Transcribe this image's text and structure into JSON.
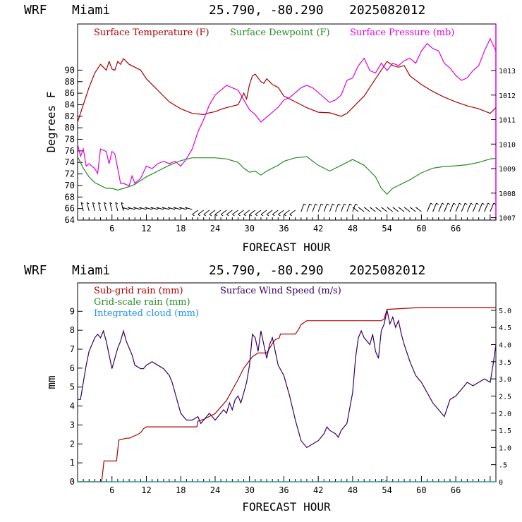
{
  "chart_data": [
    {
      "type": "line",
      "header": {
        "model": "WRF",
        "location": "Miami",
        "coords": "25.790, -80.290",
        "date": "2025082012"
      },
      "xlabel": "FORECAST HOUR",
      "ylabel": "Degrees F",
      "xlim": [
        0,
        73
      ],
      "xticks": [
        "6",
        "12",
        "18",
        "24",
        "30",
        "36",
        "42",
        "48",
        "54",
        "60",
        "66"
      ],
      "ylim": [
        64,
        98
      ],
      "yticks": [
        "64",
        "66",
        "68",
        "70",
        "72",
        "74",
        "76",
        "78",
        "80",
        "82",
        "84",
        "86",
        "88",
        "90"
      ],
      "y2lim": [
        1006.9,
        1014.9
      ],
      "y2ticks": [
        "1007",
        "1008",
        "1009",
        "1010",
        "1011",
        "1012",
        "1013"
      ],
      "colors": {
        "temperature": "#aa0000",
        "dewpoint": "#228b22",
        "pressure": "#dd00dd",
        "wind_barbs": "#000000"
      },
      "series": [
        {
          "name": "Surface Temperature (F)",
          "axis": "left",
          "x": [
            0,
            1,
            2,
            3,
            4,
            4.5,
            5,
            5.5,
            6,
            6.5,
            7,
            7.5,
            8,
            9,
            10,
            11,
            12,
            14,
            16,
            18,
            20,
            22,
            23,
            24,
            25,
            26,
            28,
            29,
            29.5,
            30,
            30.5,
            31,
            32,
            32.5,
            33,
            34,
            35,
            36,
            38,
            40,
            42,
            44,
            46,
            47,
            48,
            49,
            50,
            51,
            52,
            53,
            54,
            55,
            56,
            57,
            58,
            60,
            62,
            64,
            66,
            68,
            70,
            72,
            73
          ],
          "values": [
            81,
            84,
            87,
            89.5,
            91,
            90.5,
            90,
            91.5,
            90.2,
            90,
            91.5,
            91,
            92,
            91,
            90.5,
            90,
            88.5,
            86.5,
            84.5,
            83.3,
            82.5,
            82.3,
            82.6,
            82.8,
            83.2,
            83.5,
            84,
            86,
            85,
            87.5,
            89,
            89.3,
            88,
            87.7,
            88.5,
            87.5,
            87,
            85.5,
            84.5,
            83.5,
            82.7,
            82.6,
            82,
            82.5,
            83.5,
            84.5,
            85.5,
            87,
            88.5,
            90,
            91.5,
            90.8,
            90.5,
            90.8,
            89,
            87.5,
            86.3,
            85.3,
            84.5,
            83.8,
            83.3,
            82.5,
            83.5
          ]
        },
        {
          "name": "Surface Dewpoint (F)",
          "axis": "left",
          "x": [
            0,
            1,
            2,
            3,
            4,
            5,
            6,
            7,
            8,
            9,
            10,
            12,
            14,
            16,
            18,
            20,
            22,
            24,
            26,
            28,
            29,
            30,
            31,
            32,
            33,
            34,
            35,
            36,
            38,
            40,
            42,
            44,
            46,
            48,
            49,
            50,
            51,
            52,
            53,
            54,
            55,
            56,
            58,
            60,
            62,
            64,
            66,
            68,
            70,
            72,
            73
          ],
          "values": [
            75,
            73,
            71.5,
            70.5,
            70,
            69.5,
            69.5,
            69.2,
            69.5,
            69.8,
            70.2,
            71.5,
            72.5,
            73.5,
            74.3,
            74.8,
            74.8,
            74.8,
            74.6,
            74,
            73,
            72.3,
            72.5,
            71.8,
            72.5,
            73,
            73.5,
            74.2,
            74.8,
            75,
            73.5,
            72.5,
            73.5,
            74.5,
            74,
            73.5,
            72.5,
            71.5,
            69.5,
            68.5,
            69.5,
            70,
            71,
            72.2,
            73,
            73.3,
            73.4,
            73.6,
            74,
            74.6,
            74.7
          ]
        },
        {
          "name": "Surface Pressure (mb)",
          "axis": "right",
          "x": [
            0,
            0.5,
            1,
            1.5,
            2,
            3,
            3.5,
            4,
            5,
            5.5,
            6,
            6.5,
            7,
            7.5,
            8,
            9,
            9.5,
            10,
            11,
            12,
            13,
            14,
            15,
            16,
            17,
            18,
            19,
            20,
            21,
            22,
            23,
            24,
            25,
            26,
            27,
            28,
            29,
            30,
            31,
            32,
            33,
            34,
            35,
            36,
            37,
            38,
            39,
            40,
            41,
            42,
            43,
            44,
            45,
            46,
            47,
            48,
            49,
            50,
            51,
            52,
            53,
            54,
            55,
            56,
            57,
            58,
            59,
            60,
            61,
            62,
            63,
            64,
            65,
            66,
            67,
            68,
            69,
            70,
            71,
            72,
            73
          ],
          "values": [
            1010,
            1009.5,
            1009.8,
            1009.1,
            1009.2,
            1009.0,
            1008.8,
            1009.8,
            1009.7,
            1009.2,
            1009.7,
            1009.6,
            1009.0,
            1008.4,
            1008.4,
            1008.3,
            1008.7,
            1008.4,
            1008.6,
            1009.1,
            1009.0,
            1009.2,
            1009.3,
            1009.2,
            1009.3,
            1009.1,
            1009.4,
            1009.8,
            1010.5,
            1011,
            1011.6,
            1012,
            1012.2,
            1012.4,
            1012.3,
            1012.2,
            1011.8,
            1011.4,
            1011.2,
            1010.9,
            1011.1,
            1011.3,
            1011.5,
            1011.8,
            1011.9,
            1012.1,
            1012.3,
            1012.4,
            1012.3,
            1012.1,
            1011.9,
            1011.7,
            1011.8,
            1012.0,
            1012.6,
            1012.7,
            1013.2,
            1013.5,
            1013.0,
            1012.9,
            1013.3,
            1013.0,
            1013.3,
            1013.2,
            1013.4,
            1013.5,
            1013.3,
            1013.8,
            1014.1,
            1013.9,
            1013.8,
            1013.3,
            1013.1,
            1012.8,
            1012.6,
            1012.7,
            1013.0,
            1013.2,
            1013.8,
            1014.3,
            1013.8
          ]
        }
      ]
    },
    {
      "type": "line",
      "header": {
        "model": "WRF",
        "location": "Miami",
        "coords": "25.790, -80.290",
        "date": "2025082012"
      },
      "xlabel": "FORECAST HOUR",
      "ylabel": "mm",
      "xlim": [
        0,
        73
      ],
      "xticks": [
        "6",
        "12",
        "18",
        "24",
        "30",
        "36",
        "42",
        "48",
        "54",
        "60",
        "66"
      ],
      "ylim": [
        0,
        10.5
      ],
      "yticks": [
        "0",
        "1",
        "2",
        "3",
        "4",
        "5",
        "6",
        "7",
        "8",
        "9"
      ],
      "y2lim": [
        0,
        5.8
      ],
      "y2ticks": [
        "0",
        ".5",
        "1.0",
        "1.5",
        "2.0",
        "2.5",
        "3.0",
        "3.5",
        "4.0",
        "4.5",
        "5.0"
      ],
      "colors": {
        "subgrid": "#aa0000",
        "gridscale": "#228b22",
        "cloud": "#1e90ff",
        "wind": "#330066"
      },
      "series": [
        {
          "name": "Sub-grid rain (mm)",
          "axis": "left",
          "x": [
            0,
            4.2,
            4.6,
            6.8,
            7.2,
            8.5,
            9,
            10.5,
            11,
            11.5,
            12,
            20.8,
            21,
            22,
            24,
            26,
            28,
            29,
            30.5,
            31.5,
            33,
            34,
            34.5,
            35.2,
            35.4,
            38,
            38.5,
            39,
            40,
            53,
            53.5,
            54,
            60,
            73
          ],
          "values": [
            0,
            0,
            1.1,
            1.1,
            2.2,
            2.3,
            2.3,
            2.5,
            2.6,
            2.8,
            2.9,
            2.9,
            3.2,
            3.3,
            3.6,
            4.3,
            5.4,
            6.0,
            6.6,
            6.8,
            6.8,
            7.3,
            7.5,
            7.6,
            7.8,
            7.8,
            8.0,
            8.3,
            8.5,
            8.5,
            8.6,
            9.1,
            9.2,
            9.2
          ]
        },
        {
          "name": "Grid-scale rain (mm)",
          "axis": "left",
          "x": [
            0,
            73
          ],
          "values": [
            0,
            0
          ]
        },
        {
          "name": "Integrated cloud (mm)",
          "axis": "left",
          "x": [
            0,
            52.5,
            53,
            53.5,
            54,
            73
          ],
          "values": [
            0,
            0,
            0.05,
            0.15,
            0,
            0
          ]
        },
        {
          "name": "Surface Wind Speed (m/s)",
          "axis": "right",
          "x": [
            0,
            0.5,
            1,
            1.5,
            2,
            3,
            3.5,
            4,
            4.5,
            5,
            5.5,
            6,
            7,
            7.5,
            8,
            8.5,
            9,
            9.5,
            10,
            11,
            11.5,
            12,
            13,
            14,
            15,
            16,
            16.5,
            17,
            18,
            19,
            20,
            21,
            21.5,
            22,
            22.5,
            23,
            24,
            24.5,
            25,
            25.5,
            26,
            26.5,
            27,
            27.5,
            28,
            28.5,
            29,
            29.5,
            30,
            30.5,
            31,
            31.5,
            32,
            32.5,
            33,
            33.5,
            34,
            35,
            36,
            37,
            38,
            39,
            40,
            41,
            42,
            43,
            43.5,
            44,
            45,
            45.5,
            46,
            47,
            48,
            48.5,
            49,
            49.5,
            50,
            51,
            51.5,
            52,
            52.5,
            53,
            53.5,
            54,
            54.5,
            55,
            55.5,
            56,
            56.5,
            57,
            58,
            59,
            60,
            61,
            62,
            63,
            64,
            65,
            66,
            67,
            68,
            69,
            70,
            71,
            72,
            72.5,
            73
          ],
          "values": [
            2.4,
            2.4,
            2.9,
            3.4,
            3.8,
            4.2,
            4.3,
            4.2,
            4.4,
            4.1,
            3.7,
            3.3,
            3.9,
            4.1,
            4.4,
            4.1,
            3.9,
            3.7,
            3.4,
            3.3,
            3.3,
            3.4,
            3.5,
            3.4,
            3.3,
            3.1,
            2.9,
            2.6,
            2.0,
            1.8,
            1.8,
            1.9,
            1.7,
            1.8,
            1.9,
            2.0,
            1.8,
            1.9,
            2.0,
            2.1,
            2.0,
            2.3,
            2.1,
            2.4,
            2.5,
            2.3,
            2.6,
            2.9,
            3.4,
            4.3,
            4.2,
            3.8,
            4.4,
            4.0,
            3.6,
            4.0,
            4.2,
            3.4,
            3.1,
            2.5,
            1.8,
            1.2,
            1.0,
            1.1,
            1.2,
            1.4,
            1.6,
            1.5,
            1.4,
            1.3,
            1.5,
            1.7,
            2.6,
            3.6,
            4.2,
            4.4,
            4.2,
            4.0,
            4.3,
            3.8,
            3.6,
            4.4,
            4.6,
            5.0,
            4.6,
            4.8,
            4.5,
            4.7,
            4.3,
            4.0,
            3.5,
            3.1,
            2.9,
            2.6,
            2.3,
            2.1,
            1.9,
            2.4,
            2.5,
            2.7,
            2.9,
            2.8,
            2.9,
            3.0,
            2.9,
            3.4,
            4.0
          ]
        }
      ]
    }
  ]
}
